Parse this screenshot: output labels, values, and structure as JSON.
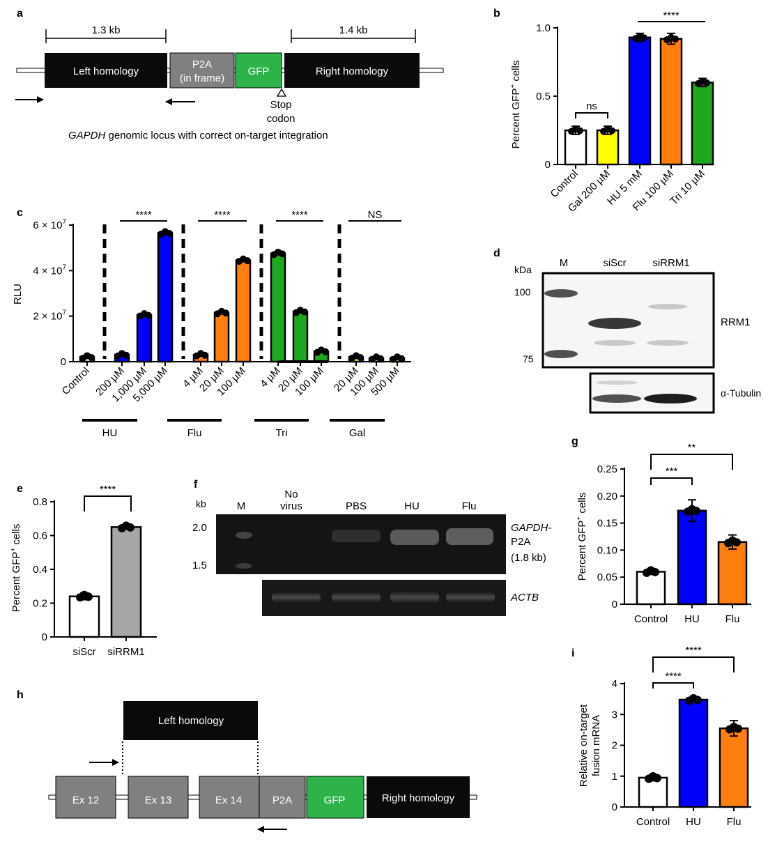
{
  "panels": {
    "a": "a",
    "b": "b",
    "c": "c",
    "d": "d",
    "e": "e",
    "f": "f",
    "g": "g",
    "h": "h",
    "i": "i"
  },
  "a": {
    "left_len": "1.3 kb",
    "right_len": "1.4 kb",
    "left_homology": "Left homology",
    "p2a_1": "P2A",
    "p2a_2": "(in frame)",
    "gfp": "GFP",
    "right_homology": "Right homology",
    "stop_1": "Stop",
    "stop_2": "codon",
    "caption_gene": "GAPDH",
    "caption_rest": " genomic locus with correct on-target integration",
    "colors": {
      "dark": "#0a0a0a",
      "p2a": "#808080",
      "gfp": "#2db34a"
    }
  },
  "b_data": {
    "type": "bar",
    "ylabel": "Percent GFP",
    "ylabel_sup": "+",
    "ylabel_tail": " cells",
    "categories": [
      "Control",
      "Gal 200 µM",
      "HU 5 mM",
      "Flu 100 µM",
      "Tri 10 µM"
    ],
    "values": [
      0.25,
      0.25,
      0.93,
      0.92,
      0.6
    ],
    "errors": [
      0.03,
      0.03,
      0.03,
      0.04,
      0.03
    ],
    "colors": [
      "#ffffff",
      "#ffff00",
      "#0000ff",
      "#ff7f0e",
      "#1fa81f"
    ],
    "ylim": [
      0,
      1.0
    ],
    "ticks": [
      {
        "v": 0,
        "l": "0"
      },
      {
        "v": 0.5,
        "l": "0.5"
      },
      {
        "v": 1.0,
        "l": "1.0"
      }
    ],
    "sig_ns": "ns",
    "sig_main": "****"
  },
  "c_data": {
    "type": "bar",
    "ylabel": "RLU",
    "categories": [
      "Control",
      "200 µM",
      "1,000 µM",
      "5,000 µM",
      "4 µM",
      "20 µM",
      "100 µM",
      "4 µM",
      "20 µM",
      "100 µM",
      "20 µM",
      "100 µM",
      "500 µM"
    ],
    "values": [
      2000000,
      3000000,
      20500000,
      56500000,
      3000000,
      21500000,
      44500000,
      47500000,
      22000000,
      4500000,
      2000000,
      1500000,
      1500000
    ],
    "colors": [
      "#ffffff",
      "#0000ff",
      "#0000ff",
      "#0000ff",
      "#ff7f0e",
      "#ff7f0e",
      "#ff7f0e",
      "#1fa81f",
      "#1fa81f",
      "#1fa81f",
      "#ffff00",
      "#ffff00",
      "#ffff00"
    ],
    "ylim": [
      0,
      60000000
    ],
    "ticks": [
      {
        "v": 0,
        "l": "0"
      },
      {
        "v": 20000000,
        "base": "2 × 10",
        "exp": "7"
      },
      {
        "v": 40000000,
        "base": "4 × 10",
        "exp": "7"
      },
      {
        "v": 60000000,
        "base": "6 × 10",
        "exp": "7"
      }
    ],
    "groups": [
      "HU",
      "Flu",
      "Tri",
      "Gal"
    ],
    "sigs": [
      "****",
      "****",
      "****",
      "NS"
    ]
  },
  "d": {
    "kda": "kDa",
    "m": "M",
    "siscr": "siScr",
    "sirrm1": "siRRM1",
    "m100": "100",
    "m75": "75",
    "rrm1": "RRM1",
    "tubulin": "α-Tubulin"
  },
  "e_data": {
    "type": "bar",
    "ylabel": "Percent GFP",
    "ylabel_sup": "+",
    "ylabel_tail": " cells",
    "categories": [
      "siScr",
      "siRRM1"
    ],
    "values": [
      0.24,
      0.65
    ],
    "errors": [
      0.02,
      0.01
    ],
    "colors": [
      "#ffffff",
      "#a6a6a6"
    ],
    "ylim": [
      0,
      0.8
    ],
    "ticks": [
      {
        "v": 0,
        "l": "0"
      },
      {
        "v": 0.2,
        "l": "0.2"
      },
      {
        "v": 0.4,
        "l": "0.4"
      },
      {
        "v": 0.6,
        "l": "0.6"
      },
      {
        "v": 0.8,
        "l": "0.8"
      }
    ],
    "sig": "****"
  },
  "f": {
    "kb": "kb",
    "m": "M",
    "novirus_1": "No",
    "novirus_2": "virus",
    "pbs": "PBS",
    "hu": "HU",
    "flu": "Flu",
    "m20": "2.0",
    "m15": "1.5",
    "gapdh_1": "GAPDH-",
    "gapdh_2": "P2A",
    "gapdh_3": "(1.8 kb)",
    "actb": "ACTB"
  },
  "g_data": {
    "type": "bar",
    "ylabel": "Percent GFP",
    "ylabel_sup": "+",
    "ylabel_tail": " cells",
    "categories": [
      "Control",
      "HU",
      "Flu"
    ],
    "values": [
      0.06,
      0.173,
      0.115
    ],
    "errors": [
      0.005,
      0.02,
      0.013
    ],
    "colors": [
      "#ffffff",
      "#0000ff",
      "#ff7f0e"
    ],
    "ylim": [
      0,
      0.25
    ],
    "ticks": [
      {
        "v": 0,
        "l": "0"
      },
      {
        "v": 0.05,
        "l": "0.05"
      },
      {
        "v": 0.1,
        "l": "0.10"
      },
      {
        "v": 0.15,
        "l": "0.15"
      },
      {
        "v": 0.2,
        "l": "0.20"
      },
      {
        "v": 0.25,
        "l": "0.25"
      }
    ],
    "sig1": "***",
    "sig2": "**"
  },
  "h": {
    "left_homology": "Left homology",
    "ex12": "Ex 12",
    "ex13": "Ex 13",
    "ex14": "Ex 14",
    "p2a": "P2A",
    "gfp": "GFP",
    "right_homology": "Right homology"
  },
  "i_data": {
    "type": "bar",
    "ylabel_1": "Relative on-target",
    "ylabel_2": "fusion mRNA",
    "categories": [
      "Control",
      "HU",
      "Flu"
    ],
    "values": [
      0.95,
      3.48,
      2.55
    ],
    "errors": [
      0.1,
      0.07,
      0.25
    ],
    "colors": [
      "#ffffff",
      "#0000ff",
      "#ff7f0e"
    ],
    "ylim": [
      0,
      4
    ],
    "ticks": [
      {
        "v": 0,
        "l": "0"
      },
      {
        "v": 1,
        "l": "1"
      },
      {
        "v": 2,
        "l": "2"
      },
      {
        "v": 3,
        "l": "3"
      },
      {
        "v": 4,
        "l": "4"
      }
    ],
    "sig1": "****",
    "sig2": "****"
  }
}
